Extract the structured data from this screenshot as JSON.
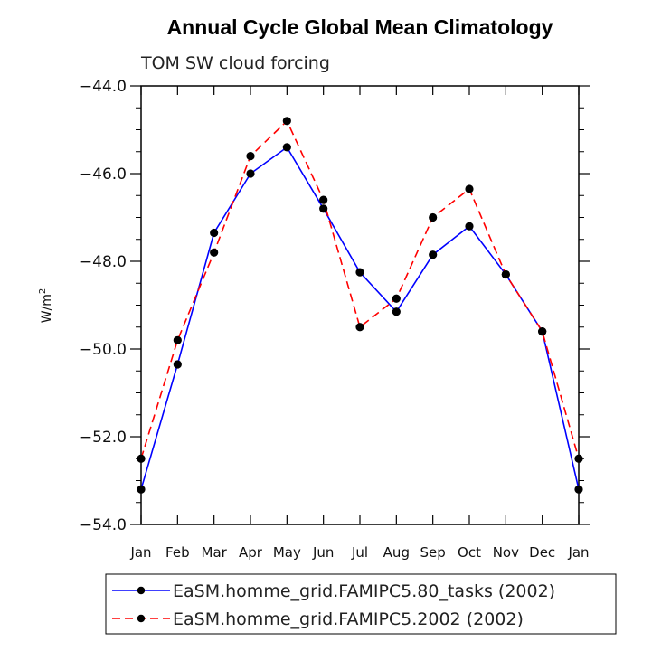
{
  "chart_data": {
    "type": "line",
    "title": "Annual Cycle Global Mean Climatology",
    "subtitle": "TOM SW cloud forcing",
    "ylabel_base": "W/m",
    "ylabel_sup": "2",
    "xlabel": "",
    "categories": [
      "Jan",
      "Feb",
      "Mar",
      "Apr",
      "May",
      "Jun",
      "Jul",
      "Aug",
      "Sep",
      "Oct",
      "Nov",
      "Dec",
      "Jan"
    ],
    "ylim": [
      -54.0,
      -44.0
    ],
    "yticks": [
      -54.0,
      -52.0,
      -50.0,
      -48.0,
      -46.0,
      -44.0
    ],
    "ytick_labels": [
      "−54.0",
      "−52.0",
      "−50.0",
      "−48.0",
      "−46.0",
      "−44.0"
    ],
    "series": [
      {
        "name": "EaSM.homme_grid.FAMIPC5.80_tasks (2002)",
        "color": "#0000ff",
        "dash": "solid",
        "marker": "circle",
        "values": [
          -53.2,
          -50.35,
          -47.35,
          -46.0,
          -45.4,
          -46.8,
          -48.25,
          -49.15,
          -47.85,
          -47.2,
          -48.3,
          -49.6,
          -53.2
        ]
      },
      {
        "name": "EaSM.homme_grid.FAMIPC5.2002 (2002)",
        "color": "#ff0000",
        "dash": "dashed",
        "marker": "circle",
        "values": [
          -52.5,
          -49.8,
          -47.8,
          -45.6,
          -44.8,
          -46.6,
          -49.5,
          -48.85,
          -47.0,
          -46.35,
          -48.3,
          -49.6,
          -52.5
        ]
      }
    ],
    "legend": "bottom"
  }
}
